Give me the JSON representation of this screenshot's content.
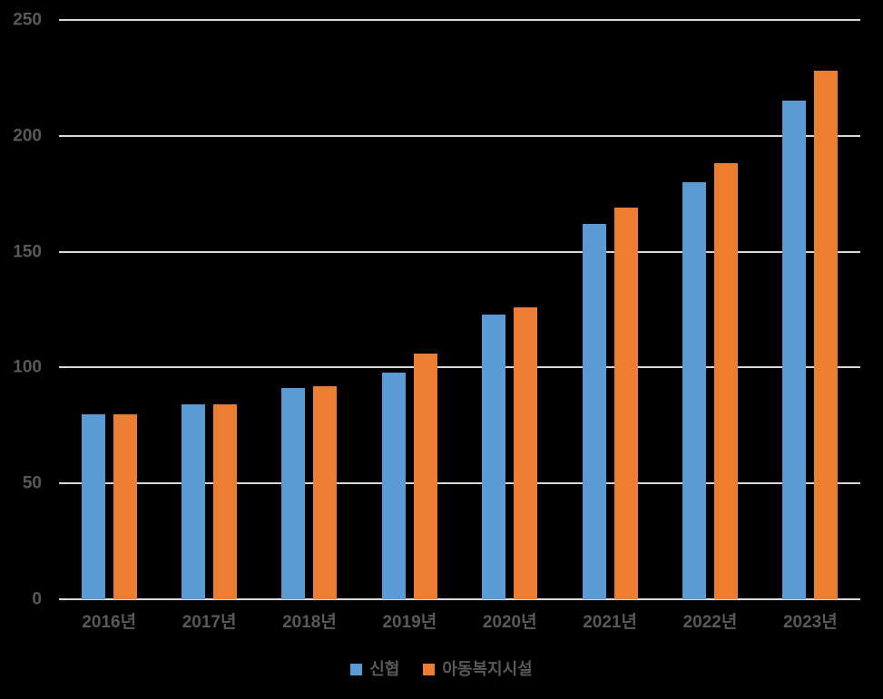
{
  "chart_data": {
    "type": "bar",
    "title": "",
    "xlabel": "",
    "ylabel": "",
    "categories": [
      "2016년",
      "2017년",
      "2018년",
      "2019년",
      "2020년",
      "2021년",
      "2022년",
      "2023년"
    ],
    "series": [
      {
        "key": "shinhyup",
        "name": "신협",
        "color": "#5B9BD5",
        "values": [
          80,
          84,
          91,
          98,
          123,
          162,
          180,
          215
        ]
      },
      {
        "key": "adong-bokji-siseol",
        "name": "아동복지시설",
        "color": "#ED7D31",
        "values": [
          80,
          84,
          92,
          106,
          126,
          169,
          188,
          228
        ]
      }
    ],
    "ylim": [
      0,
      250
    ],
    "y_ticks": [
      0,
      50,
      100,
      150,
      200,
      250
    ],
    "grid": "horizontal",
    "legend_position": "bottom",
    "colors": {
      "background": "#000000",
      "text": "#595959",
      "gridline": "#D9D9D9"
    }
  }
}
